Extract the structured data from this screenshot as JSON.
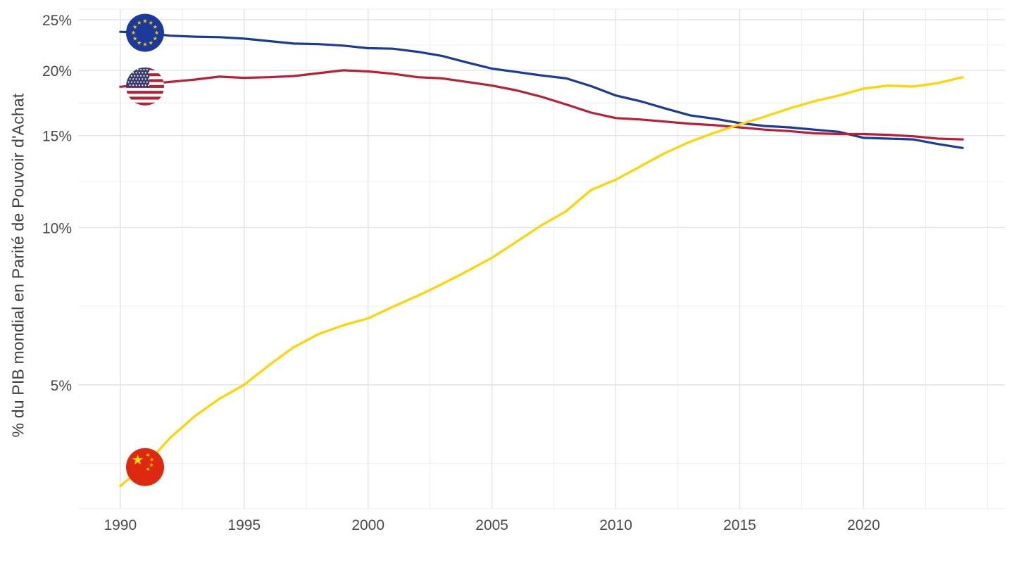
{
  "chart_data": {
    "type": "line",
    "title": "",
    "xlabel": "",
    "ylabel": "% du PIB mondial en Parité de Pouvoir d'Achat",
    "y_scale": "log10",
    "grid": true,
    "legend_position": "flag-icons-on-lines-at-1991",
    "xlim": [
      1988.3,
      2025.7
    ],
    "ylim": [
      2.894,
      26.19
    ],
    "x_ticks": [
      {
        "value": 1990,
        "label": "1990"
      },
      {
        "value": 1995,
        "label": "1995"
      },
      {
        "value": 2000,
        "label": "2000"
      },
      {
        "value": 2005,
        "label": "2005"
      },
      {
        "value": 2010,
        "label": "2010"
      },
      {
        "value": 2015,
        "label": "2015"
      },
      {
        "value": 2020,
        "label": "2020"
      }
    ],
    "x_minor_gridlines": [
      1992.5,
      1997.5,
      2002.5,
      2007.5,
      2012.5,
      2017.5,
      2022.5,
      2025
    ],
    "y_ticks": [
      {
        "value": 25,
        "label": "25%"
      },
      {
        "value": 20,
        "label": "20%"
      },
      {
        "value": 15,
        "label": "15%"
      },
      {
        "value": 10,
        "label": "10%"
      },
      {
        "value": 5,
        "label": "5%"
      }
    ],
    "y_minor_gridlines": [
      22.36,
      17.32,
      12.25,
      7.071,
      3.536
    ],
    "years": [
      1990,
      1991,
      1992,
      1993,
      1994,
      1995,
      1996,
      1997,
      1998,
      1999,
      2000,
      2001,
      2002,
      2003,
      2004,
      2005,
      2006,
      2007,
      2008,
      2009,
      2010,
      2011,
      2012,
      2013,
      2014,
      2015,
      2016,
      2017,
      2018,
      2019,
      2020,
      2021,
      2022,
      2023,
      2024
    ],
    "flag_anchor_year": 1991,
    "series": [
      {
        "id": "eu",
        "icon": "eu-flag-icon",
        "color": "#1a3a9c",
        "values": [
          23.7,
          23.6,
          23.3,
          23.2,
          23.15,
          23.0,
          22.75,
          22.5,
          22.45,
          22.3,
          22.05,
          22.0,
          21.7,
          21.3,
          20.7,
          20.15,
          19.85,
          19.55,
          19.3,
          18.65,
          17.9,
          17.45,
          16.9,
          16.4,
          16.15,
          15.85,
          15.65,
          15.55,
          15.4,
          15.25,
          14.85,
          14.8,
          14.75,
          14.45,
          14.2
        ]
      },
      {
        "id": "us",
        "icon": "us-flag-icon",
        "color": "#b92035",
        "values": [
          18.6,
          18.8,
          19.0,
          19.2,
          19.45,
          19.35,
          19.4,
          19.5,
          19.75,
          20.0,
          19.9,
          19.7,
          19.4,
          19.3,
          19.0,
          18.7,
          18.3,
          17.8,
          17.2,
          16.6,
          16.2,
          16.1,
          15.95,
          15.8,
          15.7,
          15.55,
          15.4,
          15.3,
          15.15,
          15.1,
          15.1,
          15.05,
          14.95,
          14.8,
          14.75
        ]
      },
      {
        "id": "cn",
        "icon": "china-flag-icon",
        "color": "#ffd400",
        "values": [
          3.2,
          3.5,
          3.95,
          4.35,
          4.7,
          5.0,
          5.45,
          5.9,
          6.25,
          6.5,
          6.7,
          7.05,
          7.4,
          7.8,
          8.25,
          8.75,
          9.4,
          10.1,
          10.75,
          11.8,
          12.35,
          13.1,
          13.9,
          14.6,
          15.2,
          15.75,
          16.3,
          16.9,
          17.45,
          17.9,
          18.45,
          18.7,
          18.62,
          18.9,
          19.4
        ]
      }
    ]
  },
  "colors": {
    "background": "#ffffff",
    "grid_major": "#e4e4e4",
    "grid_minor": "#f0f0f0",
    "tick_text": "#4a4a4a",
    "axis_title_text": "#404040",
    "eu_line": "#1a3a9c",
    "us_line": "#b92035",
    "china_line": "#ffd400",
    "eu_flag_blue": "#1b3a9b",
    "eu_flag_star": "#f5c500",
    "us_flag_canton": "#3c3b6e",
    "us_flag_red": "#b22234",
    "us_flag_white": "#ffffff",
    "china_flag_red": "#de2910",
    "china_flag_star": "#ffde00"
  }
}
